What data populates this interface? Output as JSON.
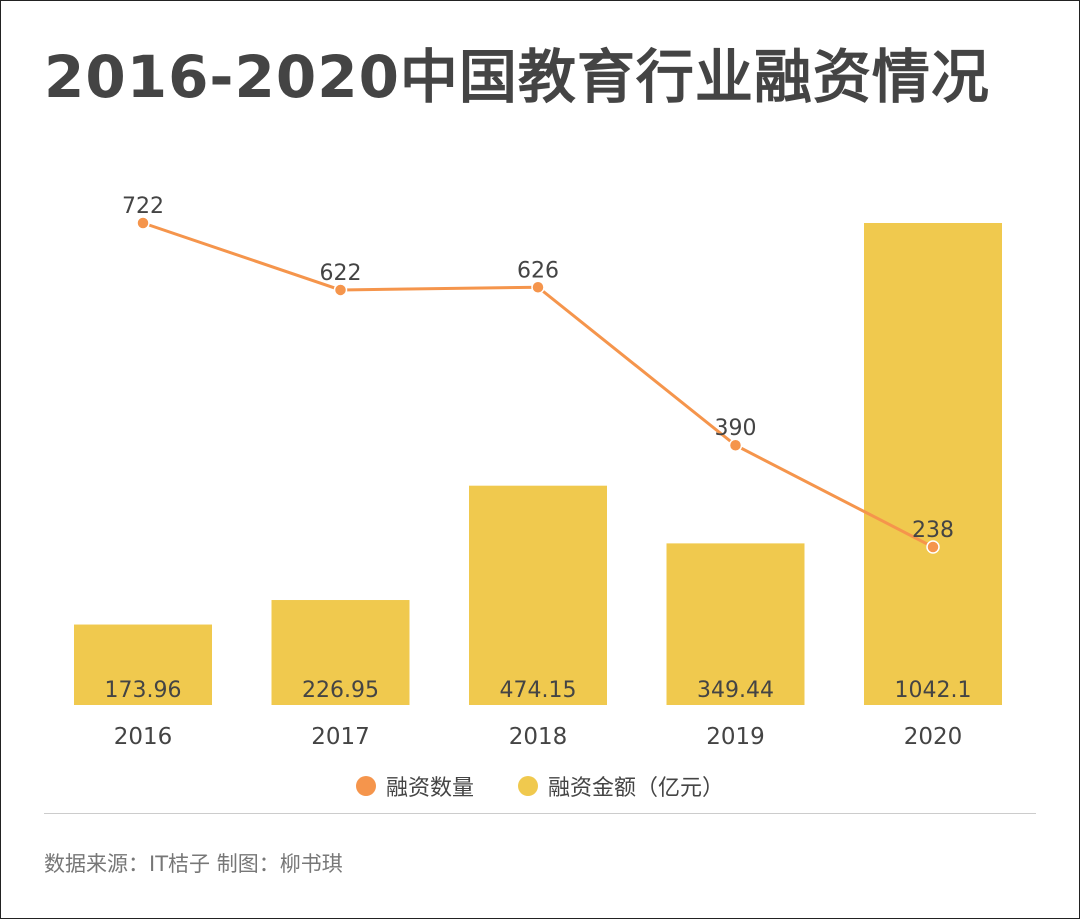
{
  "title": "2016-2020中国教育行业融资情况",
  "source": "数据来源：IT桔子 制图：柳书琪",
  "colors": {
    "bar": "#F0C94E",
    "line": "#F5954C",
    "axis_text": "#444444"
  },
  "chart_data": {
    "type": "bar",
    "title": "2016-2020中国教育行业融资情况",
    "categories": [
      "2016",
      "2017",
      "2018",
      "2019",
      "2020"
    ],
    "series": [
      {
        "name": "融资金额（亿元）",
        "type": "bar",
        "values": [
          173.96,
          226.95,
          474.15,
          349.44,
          1042.1
        ],
        "labels": [
          "173.96",
          "226.95",
          "474.15",
          "349.44",
          "1042.1"
        ]
      },
      {
        "name": "融资数量",
        "type": "line",
        "values": [
          722,
          622,
          626,
          390,
          238
        ],
        "labels": [
          "722",
          "622",
          "626",
          "390",
          "238"
        ]
      }
    ],
    "bar_ylim": [
      0,
      1042.1
    ],
    "line_ylim": [
      0,
      1000
    ],
    "legend_position": "bottom",
    "grid": false
  },
  "legend": {
    "items": [
      {
        "label": "融资数量"
      },
      {
        "label": "融资金额（亿元）"
      }
    ]
  }
}
